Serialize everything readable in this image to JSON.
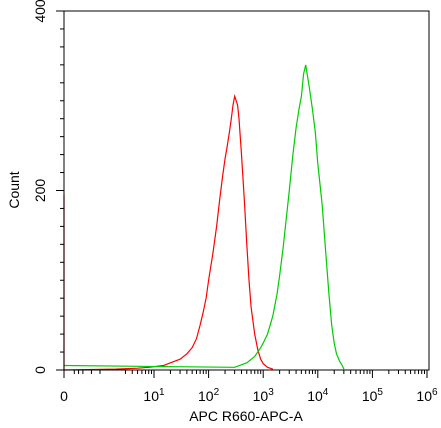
{
  "chart_data": {
    "type": "line",
    "title": "",
    "xlabel": "APC R660-APC-A",
    "ylabel": "Count",
    "x_scale": "log",
    "x_tick_labels": [
      {
        "value": 0,
        "label": "0"
      },
      {
        "value": 10,
        "base": "10",
        "exp": "1"
      },
      {
        "value": 100,
        "base": "10",
        "exp": "2"
      },
      {
        "value": 1000,
        "base": "10",
        "exp": "3"
      },
      {
        "value": 10000,
        "base": "10",
        "exp": "4"
      },
      {
        "value": 100000,
        "base": "10",
        "exp": "5"
      },
      {
        "value": 1000000,
        "base": "10",
        "exp": "6"
      }
    ],
    "y_tick_labels": [
      "0",
      "200",
      "400"
    ],
    "y_ticks": [
      0,
      200,
      400
    ],
    "ylim": [
      0,
      400
    ],
    "grid": false,
    "series": [
      {
        "color": "#ff0000",
        "x": [
          0,
          0,
          0,
          2,
          5,
          8,
          15,
          20,
          30,
          40,
          50,
          60,
          70,
          80,
          90,
          100,
          120,
          140,
          160,
          180,
          200,
          220,
          240,
          260,
          280,
          300,
          320,
          340,
          360,
          400,
          450,
          500,
          550,
          600,
          700,
          800,
          900,
          1000,
          1200,
          1500
        ],
        "y": [
          0,
          195,
          0,
          1,
          2,
          3,
          5,
          8,
          12,
          18,
          25,
          35,
          50,
          65,
          80,
          100,
          130,
          160,
          190,
          215,
          235,
          250,
          265,
          280,
          295,
          305,
          300,
          295,
          280,
          240,
          190,
          140,
          100,
          70,
          40,
          22,
          12,
          7,
          3,
          1
        ]
      },
      {
        "color": "#00cc00",
        "x": [
          0,
          300,
          500,
          700,
          900,
          1000,
          1200,
          1500,
          1800,
          2000,
          2300,
          2600,
          3000,
          3500,
          4000,
          4500,
          5000,
          5500,
          6000,
          7000,
          8000,
          9000,
          10000,
          12000,
          14000,
          16000,
          18000,
          20000,
          22000,
          25000,
          28000,
          30000
        ],
        "y": [
          5,
          3,
          8,
          15,
          25,
          30,
          40,
          60,
          85,
          105,
          135,
          165,
          200,
          240,
          270,
          290,
          305,
          330,
          340,
          315,
          290,
          265,
          230,
          185,
          130,
          85,
          50,
          30,
          18,
          10,
          5,
          1
        ]
      }
    ]
  }
}
